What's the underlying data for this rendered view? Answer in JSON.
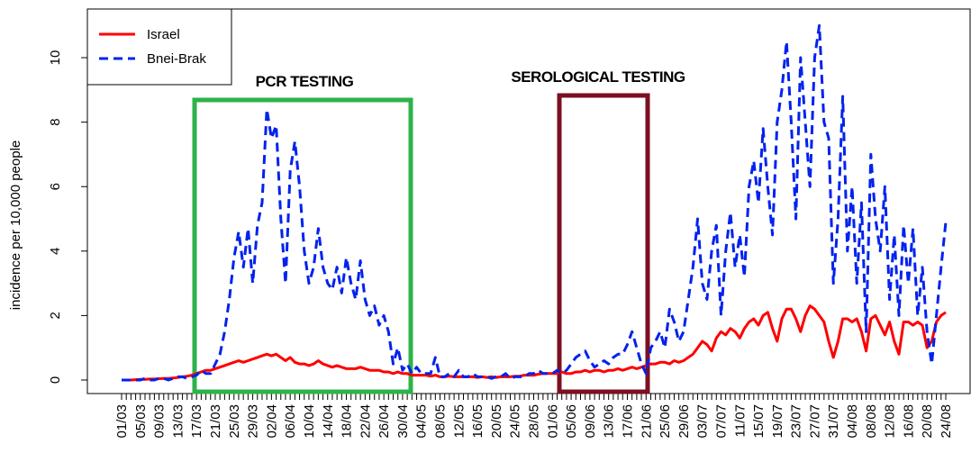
{
  "chart_data": {
    "type": "line",
    "ylabel": "incidence per 10,000 people",
    "ylim": [
      -0.42,
      11.51
    ],
    "yticks": [
      0,
      2,
      4,
      6,
      8,
      10
    ],
    "legend": "top-left",
    "categories": [
      "01/03",
      null,
      null,
      null,
      "05/03",
      null,
      null,
      null,
      "09/03",
      null,
      null,
      null,
      "13/03",
      null,
      null,
      null,
      "17/03",
      null,
      null,
      null,
      "21/03",
      null,
      null,
      null,
      "25/03",
      null,
      null,
      null,
      "29/03",
      null,
      null,
      null,
      "02/04",
      null,
      null,
      null,
      "06/04",
      null,
      null,
      null,
      "10/04",
      null,
      null,
      null,
      "14/04",
      null,
      null,
      null,
      "18/04",
      null,
      null,
      null,
      "22/04",
      null,
      null,
      null,
      "26/04",
      null,
      null,
      null,
      "30/04",
      null,
      null,
      null,
      "04/05",
      null,
      null,
      null,
      "08/05",
      null,
      null,
      null,
      "12/05",
      null,
      null,
      null,
      "16/05",
      null,
      null,
      null,
      "20/05",
      null,
      null,
      null,
      "24/05",
      null,
      null,
      null,
      "28/05",
      null,
      null,
      null,
      "01/06",
      null,
      null,
      null,
      "05/06",
      null,
      null,
      null,
      "09/06",
      null,
      null,
      null,
      "13/06",
      null,
      null,
      null,
      "17/06",
      null,
      null,
      null,
      "21/06",
      null,
      null,
      null,
      "25/06",
      null,
      null,
      null,
      "29/06",
      null,
      null,
      null,
      "03/07",
      null,
      null,
      null,
      "07/07",
      null,
      null,
      null,
      "11/07",
      null,
      null,
      null,
      "15/07",
      null,
      null,
      null,
      "19/07",
      null,
      null,
      null,
      "23/07",
      null,
      null,
      null,
      "27/07",
      null,
      null,
      null,
      "31/07",
      null,
      null,
      null,
      "04/08",
      null,
      null,
      null,
      "08/08",
      null,
      null,
      null,
      "12/08",
      null,
      null,
      null,
      "16/08",
      null,
      null,
      null,
      "20/08",
      null,
      null,
      null,
      "24/08"
    ],
    "series": [
      {
        "name": "Israel",
        "color": "#ff0000",
        "dash": false,
        "values": [
          0,
          0,
          0,
          0.01,
          0.02,
          0.02,
          0.03,
          0.03,
          0.04,
          0.05,
          0.05,
          0.06,
          0.08,
          0.1,
          0.12,
          0.15,
          0.2,
          0.25,
          0.3,
          0.3,
          0.35,
          0.4,
          0.45,
          0.5,
          0.55,
          0.6,
          0.55,
          0.6,
          0.65,
          0.7,
          0.75,
          0.8,
          0.75,
          0.8,
          0.7,
          0.6,
          0.7,
          0.55,
          0.5,
          0.5,
          0.45,
          0.5,
          0.6,
          0.5,
          0.45,
          0.4,
          0.45,
          0.4,
          0.35,
          0.35,
          0.35,
          0.4,
          0.35,
          0.3,
          0.3,
          0.3,
          0.25,
          0.25,
          0.2,
          0.25,
          0.2,
          0.2,
          0.15,
          0.15,
          0.15,
          0.15,
          0.12,
          0.15,
          0.1,
          0.1,
          0.12,
          0.1,
          0.1,
          0.1,
          0.1,
          0.1,
          0.08,
          0.1,
          0.08,
          0.1,
          0.08,
          0.1,
          0.1,
          0.1,
          0.12,
          0.12,
          0.15,
          0.15,
          0.15,
          0.18,
          0.2,
          0.2,
          0.2,
          0.2,
          0.25,
          0.2,
          0.2,
          0.25,
          0.25,
          0.3,
          0.25,
          0.3,
          0.3,
          0.25,
          0.3,
          0.3,
          0.35,
          0.3,
          0.35,
          0.4,
          0.35,
          0.4,
          0.45,
          0.5,
          0.5,
          0.55,
          0.55,
          0.5,
          0.6,
          0.55,
          0.6,
          0.7,
          0.8,
          1.0,
          1.2,
          1.1,
          0.9,
          1.3,
          1.5,
          1.4,
          1.6,
          1.5,
          1.3,
          1.6,
          1.8,
          1.9,
          1.7,
          2.0,
          2.1,
          1.6,
          1.2,
          1.9,
          2.2,
          2.2,
          1.9,
          1.5,
          2.0,
          2.3,
          2.2,
          2.0,
          1.8,
          1.2,
          0.7,
          1.2,
          1.9,
          1.9,
          1.8,
          1.9,
          1.5,
          0.9,
          1.9,
          2.0,
          1.7,
          1.4,
          1.8,
          1.2,
          0.8,
          1.8,
          1.8,
          1.7,
          1.8,
          1.7,
          1.0,
          1.2,
          1.8,
          2.0,
          2.1
        ]
      },
      {
        "name": "Bnei-Brak",
        "color": "#0022ee",
        "dash": true,
        "values": [
          0,
          0,
          0,
          0,
          0,
          0.05,
          0,
          0,
          0.05,
          0.05,
          0,
          0.05,
          0.1,
          0.1,
          0.05,
          0.1,
          0.15,
          0.3,
          0.2,
          0.2,
          0.5,
          0.8,
          1.5,
          2.5,
          3.8,
          4.6,
          3.5,
          4.7,
          3.0,
          4.8,
          5.5,
          8.4,
          7.5,
          7.9,
          5.0,
          3.0,
          6.5,
          7.4,
          6.0,
          4.0,
          3.0,
          3.5,
          4.7,
          3.5,
          3.0,
          2.8,
          3.5,
          2.7,
          3.8,
          3.0,
          2.5,
          3.7,
          2.5,
          2.0,
          2.3,
          1.7,
          2.0,
          1.5,
          0.5,
          1.0,
          0.3,
          0.5,
          0.2,
          0.4,
          0.2,
          0.2,
          0.2,
          0.7,
          0.1,
          0.1,
          0.2,
          0.1,
          0.3,
          0.1,
          0.1,
          0.2,
          0.1,
          0.1,
          0.1,
          0.05,
          0.1,
          0.1,
          0.2,
          0.05,
          0.1,
          0.1,
          0.1,
          0.2,
          0.2,
          0.3,
          0.2,
          0.2,
          0.2,
          0.3,
          0.2,
          0.3,
          0.5,
          0.7,
          0.8,
          0.9,
          0.6,
          0.4,
          0.5,
          0.6,
          0.5,
          0.7,
          0.8,
          0.8,
          1.1,
          1.5,
          1.0,
          0.5,
          0.2,
          1.0,
          1.2,
          1.5,
          1.0,
          2.2,
          1.8,
          1.2,
          1.5,
          2.5,
          3.5,
          5.0,
          3.0,
          2.5,
          4.0,
          4.8,
          2.0,
          4.0,
          5.2,
          3.5,
          4.5,
          3.2,
          6.0,
          6.8,
          5.5,
          7.8,
          6.0,
          4.5,
          8.0,
          9.0,
          10.5,
          8.0,
          5.0,
          10.0,
          8.0,
          6.0,
          10.0,
          11.0,
          8.0,
          7.5,
          3.0,
          5.0,
          8.8,
          4.0,
          6.0,
          3.0,
          5.5,
          1.5,
          7.0,
          5.0,
          4.0,
          6.0,
          2.5,
          4.5,
          2.0,
          4.8,
          3.0,
          4.7,
          2.0,
          3.5,
          1.5,
          0.5,
          2.0,
          3.5,
          4.9
        ]
      }
    ],
    "annotations": [
      {
        "text": "PCR TESTING",
        "color": "#2db34a"
      },
      {
        "text": "SEROLOGICAL TESTING",
        "color": "#7b1020"
      }
    ]
  }
}
